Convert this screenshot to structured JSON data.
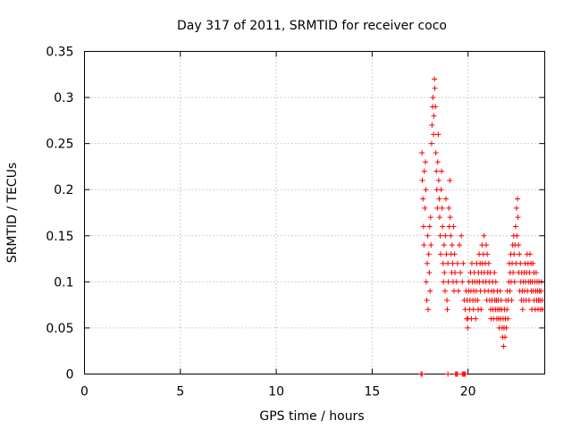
{
  "chart_data": {
    "type": "scatter",
    "title": "Day 317 of 2011, SRMTID for receiver coco",
    "xlabel": "GPS time / hours",
    "ylabel": "SRMTID / TECUs",
    "xlim": [
      0,
      24
    ],
    "ylim": [
      0,
      0.35
    ],
    "x_ticks": [
      0,
      5,
      10,
      15,
      20
    ],
    "y_ticks": [
      0,
      0.05,
      0.1,
      0.15,
      0.2,
      0.25,
      0.3,
      0.35
    ],
    "y_tick_labels": [
      "0",
      "0.05",
      "0.1",
      "0.15",
      "0.2",
      "0.25",
      "0.3",
      "0.35"
    ],
    "grid": true,
    "marker": "plus",
    "color": "#ff0000",
    "series": [
      {
        "points": [
          [
            17.55,
            0.0
          ],
          [
            17.6,
            0.0
          ],
          [
            18.95,
            0.0
          ],
          [
            19.35,
            0.0
          ],
          [
            19.4,
            0.0
          ],
          [
            19.45,
            0.0
          ],
          [
            19.7,
            0.0
          ],
          [
            19.75,
            0.0
          ],
          [
            19.8,
            0.0
          ],
          [
            19.85,
            0.0
          ],
          [
            17.6,
            0.24
          ],
          [
            17.62,
            0.21
          ],
          [
            17.65,
            0.19
          ],
          [
            17.68,
            0.16
          ],
          [
            17.7,
            0.14
          ],
          [
            17.72,
            0.22
          ],
          [
            17.75,
            0.18
          ],
          [
            17.78,
            0.23
          ],
          [
            17.8,
            0.2
          ],
          [
            17.82,
            0.1
          ],
          [
            17.85,
            0.08
          ],
          [
            17.87,
            0.12
          ],
          [
            17.9,
            0.15
          ],
          [
            17.92,
            0.07
          ],
          [
            17.95,
            0.13
          ],
          [
            17.98,
            0.11
          ],
          [
            18.0,
            0.16
          ],
          [
            18.02,
            0.09
          ],
          [
            18.05,
            0.17
          ],
          [
            18.07,
            0.14
          ],
          [
            18.1,
            0.25
          ],
          [
            18.12,
            0.27
          ],
          [
            18.15,
            0.29
          ],
          [
            18.17,
            0.3
          ],
          [
            18.2,
            0.26
          ],
          [
            18.22,
            0.28
          ],
          [
            18.25,
            0.32
          ],
          [
            18.27,
            0.31
          ],
          [
            18.3,
            0.29
          ],
          [
            18.32,
            0.24
          ],
          [
            18.35,
            0.22
          ],
          [
            18.37,
            0.2
          ],
          [
            18.4,
            0.18
          ],
          [
            18.42,
            0.23
          ],
          [
            18.45,
            0.26
          ],
          [
            18.47,
            0.21
          ],
          [
            18.5,
            0.19
          ],
          [
            18.52,
            0.17
          ],
          [
            18.55,
            0.15
          ],
          [
            18.57,
            0.13
          ],
          [
            18.6,
            0.2
          ],
          [
            18.62,
            0.22
          ],
          [
            18.65,
            0.18
          ],
          [
            18.67,
            0.16
          ],
          [
            18.7,
            0.12
          ],
          [
            18.72,
            0.1
          ],
          [
            18.75,
            0.14
          ],
          [
            18.77,
            0.11
          ],
          [
            18.8,
            0.09
          ],
          [
            18.82,
            0.15
          ],
          [
            18.85,
            0.19
          ],
          [
            18.87,
            0.13
          ],
          [
            18.9,
            0.08
          ],
          [
            18.92,
            0.07
          ],
          [
            18.95,
            0.12
          ],
          [
            18.97,
            0.1
          ],
          [
            19.0,
            0.18
          ],
          [
            19.02,
            0.16
          ],
          [
            19.05,
            0.21
          ],
          [
            19.07,
            0.17
          ],
          [
            19.1,
            0.15
          ],
          [
            19.12,
            0.13
          ],
          [
            19.15,
            0.11
          ],
          [
            19.17,
            0.14
          ],
          [
            19.2,
            0.12
          ],
          [
            19.22,
            0.1
          ],
          [
            19.25,
            0.16
          ],
          [
            19.27,
            0.09
          ],
          [
            19.3,
            0.13
          ],
          [
            19.32,
            0.11
          ],
          [
            19.4,
            0.1
          ],
          [
            19.45,
            0.12
          ],
          [
            19.5,
            0.09
          ],
          [
            19.55,
            0.14
          ],
          [
            19.6,
            0.11
          ],
          [
            19.65,
            0.15
          ],
          [
            19.7,
            0.1
          ],
          [
            19.75,
            0.12
          ],
          [
            19.8,
            0.08
          ],
          [
            19.85,
            0.07
          ],
          [
            19.9,
            0.09
          ],
          [
            19.93,
            0.06
          ],
          [
            19.95,
            0.08
          ],
          [
            19.98,
            0.05
          ],
          [
            20.0,
            0.06
          ],
          [
            20.03,
            0.09
          ],
          [
            20.05,
            0.1
          ],
          [
            20.08,
            0.07
          ],
          [
            20.1,
            0.08
          ],
          [
            20.13,
            0.11
          ],
          [
            20.15,
            0.09
          ],
          [
            20.18,
            0.06
          ],
          [
            20.2,
            0.12
          ],
          [
            20.23,
            0.1
          ],
          [
            20.25,
            0.08
          ],
          [
            20.28,
            0.07
          ],
          [
            20.3,
            0.09
          ],
          [
            20.33,
            0.11
          ],
          [
            20.35,
            0.1
          ],
          [
            20.38,
            0.08
          ],
          [
            20.4,
            0.06
          ],
          [
            20.43,
            0.09
          ],
          [
            20.45,
            0.12
          ],
          [
            20.48,
            0.1
          ],
          [
            20.5,
            0.08
          ],
          [
            20.53,
            0.07
          ],
          [
            20.55,
            0.11
          ],
          [
            20.58,
            0.13
          ],
          [
            20.6,
            0.1
          ],
          [
            20.63,
            0.12
          ],
          [
            20.65,
            0.09
          ],
          [
            20.68,
            0.07
          ],
          [
            20.7,
            0.11
          ],
          [
            20.73,
            0.14
          ],
          [
            20.75,
            0.12
          ],
          [
            20.78,
            0.1
          ],
          [
            20.8,
            0.13
          ],
          [
            20.83,
            0.15
          ],
          [
            20.85,
            0.11
          ],
          [
            20.88,
            0.09
          ],
          [
            20.9,
            0.12
          ],
          [
            20.93,
            0.1
          ],
          [
            20.95,
            0.14
          ],
          [
            20.98,
            0.08
          ],
          [
            21.0,
            0.13
          ],
          [
            21.03,
            0.11
          ],
          [
            21.05,
            0.09
          ],
          [
            21.08,
            0.12
          ],
          [
            21.1,
            0.1
          ],
          [
            21.13,
            0.08
          ],
          [
            21.15,
            0.11
          ],
          [
            21.18,
            0.07
          ],
          [
            21.2,
            0.06
          ],
          [
            21.23,
            0.09
          ],
          [
            21.25,
            0.08
          ],
          [
            21.28,
            0.1
          ],
          [
            21.3,
            0.07
          ],
          [
            21.33,
            0.06
          ],
          [
            21.35,
            0.09
          ],
          [
            21.38,
            0.11
          ],
          [
            21.4,
            0.08
          ],
          [
            21.43,
            0.07
          ],
          [
            21.45,
            0.1
          ],
          [
            21.48,
            0.08
          ],
          [
            21.5,
            0.06
          ],
          [
            21.53,
            0.09
          ],
          [
            21.55,
            0.07
          ],
          [
            21.58,
            0.08
          ],
          [
            21.6,
            0.06
          ],
          [
            21.63,
            0.05
          ],
          [
            21.65,
            0.07
          ],
          [
            21.68,
            0.09
          ],
          [
            21.7,
            0.06
          ],
          [
            21.73,
            0.08
          ],
          [
            21.75,
            0.07
          ],
          [
            21.78,
            0.05
          ],
          [
            21.8,
            0.04
          ],
          [
            21.83,
            0.06
          ],
          [
            21.85,
            0.03
          ],
          [
            21.88,
            0.05
          ],
          [
            21.9,
            0.07
          ],
          [
            21.93,
            0.04
          ],
          [
            21.95,
            0.06
          ],
          [
            21.98,
            0.08
          ],
          [
            22.0,
            0.05
          ],
          [
            22.03,
            0.07
          ],
          [
            22.05,
            0.09
          ],
          [
            22.08,
            0.06
          ],
          [
            22.1,
            0.08
          ],
          [
            22.13,
            0.1
          ],
          [
            22.15,
            0.12
          ],
          [
            22.18,
            0.09
          ],
          [
            22.2,
            0.11
          ],
          [
            22.23,
            0.13
          ],
          [
            22.25,
            0.1
          ],
          [
            22.28,
            0.08
          ],
          [
            22.3,
            0.12
          ],
          [
            22.33,
            0.14
          ],
          [
            22.35,
            0.11
          ],
          [
            22.38,
            0.15
          ],
          [
            22.4,
            0.13
          ],
          [
            22.43,
            0.1
          ],
          [
            22.45,
            0.14
          ],
          [
            22.48,
            0.16
          ],
          [
            22.5,
            0.12
          ],
          [
            22.53,
            0.18
          ],
          [
            22.55,
            0.15
          ],
          [
            22.58,
            0.19
          ],
          [
            22.6,
            0.17
          ],
          [
            22.63,
            0.14
          ],
          [
            22.65,
            0.11
          ],
          [
            22.68,
            0.13
          ],
          [
            22.7,
            0.09
          ],
          [
            22.73,
            0.12
          ],
          [
            22.75,
            0.1
          ],
          [
            22.78,
            0.08
          ],
          [
            22.8,
            0.11
          ],
          [
            22.83,
            0.09
          ],
          [
            22.85,
            0.07
          ],
          [
            22.88,
            0.1
          ],
          [
            22.9,
            0.08
          ],
          [
            22.93,
            0.11
          ],
          [
            22.95,
            0.09
          ],
          [
            22.98,
            0.12
          ],
          [
            23.0,
            0.1
          ],
          [
            23.03,
            0.08
          ],
          [
            23.05,
            0.11
          ],
          [
            23.08,
            0.13
          ],
          [
            23.1,
            0.09
          ],
          [
            23.13,
            0.12
          ],
          [
            23.15,
            0.1
          ],
          [
            23.18,
            0.08
          ],
          [
            23.2,
            0.11
          ],
          [
            23.23,
            0.13
          ],
          [
            23.25,
            0.1
          ],
          [
            23.28,
            0.12
          ],
          [
            23.3,
            0.09
          ],
          [
            23.33,
            0.07
          ],
          [
            23.35,
            0.1
          ],
          [
            23.38,
            0.12
          ],
          [
            23.4,
            0.09
          ],
          [
            23.43,
            0.11
          ],
          [
            23.45,
            0.08
          ],
          [
            23.48,
            0.1
          ],
          [
            23.5,
            0.07
          ],
          [
            23.53,
            0.09
          ],
          [
            23.55,
            0.11
          ],
          [
            23.58,
            0.08
          ],
          [
            23.6,
            0.1
          ],
          [
            23.63,
            0.09
          ],
          [
            23.65,
            0.07
          ],
          [
            23.68,
            0.08
          ],
          [
            23.7,
            0.1
          ],
          [
            23.73,
            0.09
          ],
          [
            23.75,
            0.08
          ],
          [
            23.78,
            0.07
          ],
          [
            23.8,
            0.09
          ],
          [
            23.83,
            0.1
          ],
          [
            23.85,
            0.08
          ],
          [
            23.88,
            0.07
          ]
        ]
      }
    ]
  }
}
